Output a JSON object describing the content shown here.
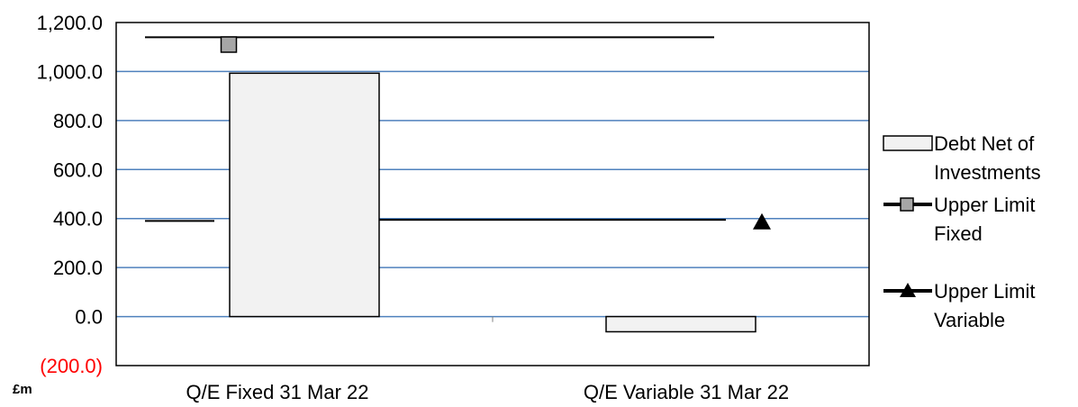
{
  "chart_data": {
    "type": "bar",
    "categories": [
      "Q/E Fixed 31 Mar 22",
      "Q/E Variable 31 Mar 22"
    ],
    "series": [
      {
        "name": "Debt Net of Investments",
        "kind": "bar",
        "values": [
          993,
          -62
        ],
        "color": "#f2f2f2"
      },
      {
        "name": "Upper Limit Fixed",
        "kind": "line-marker",
        "marker": "square",
        "values": [
          1110,
          null
        ],
        "color": "#a6a6a6"
      },
      {
        "name": "Upper Limit Variable",
        "kind": "line-marker",
        "marker": "triangle",
        "values": [
          null,
          385
        ],
        "color": "#000000"
      }
    ],
    "ylim": [
      -200,
      1200
    ],
    "yticks": [
      -200,
      0,
      200,
      400,
      600,
      800,
      1000,
      1200
    ],
    "ytick_labels": [
      "(200.0)",
      "0.0",
      "200.0",
      "400.0",
      "600.0",
      "800.0",
      "1,000.0",
      "1,200.0"
    ],
    "negative_tick_color": "#ff0000",
    "gridline_color": "#4f81bd",
    "grid": true,
    "reference_lines": [
      {
        "y": 1140
      },
      {
        "y": 390
      },
      {
        "y": 395
      }
    ],
    "unit_label": "£m",
    "legend": [
      "Debt Net of Investments",
      "Upper Limit Fixed",
      "Upper Limit Variable"
    ],
    "legend_lines": [
      [
        "Debt Net of",
        "Investments"
      ],
      [
        "Upper Limit",
        "Fixed"
      ],
      [
        "Upper Limit",
        "Variable"
      ]
    ],
    "legend_position": "right"
  }
}
